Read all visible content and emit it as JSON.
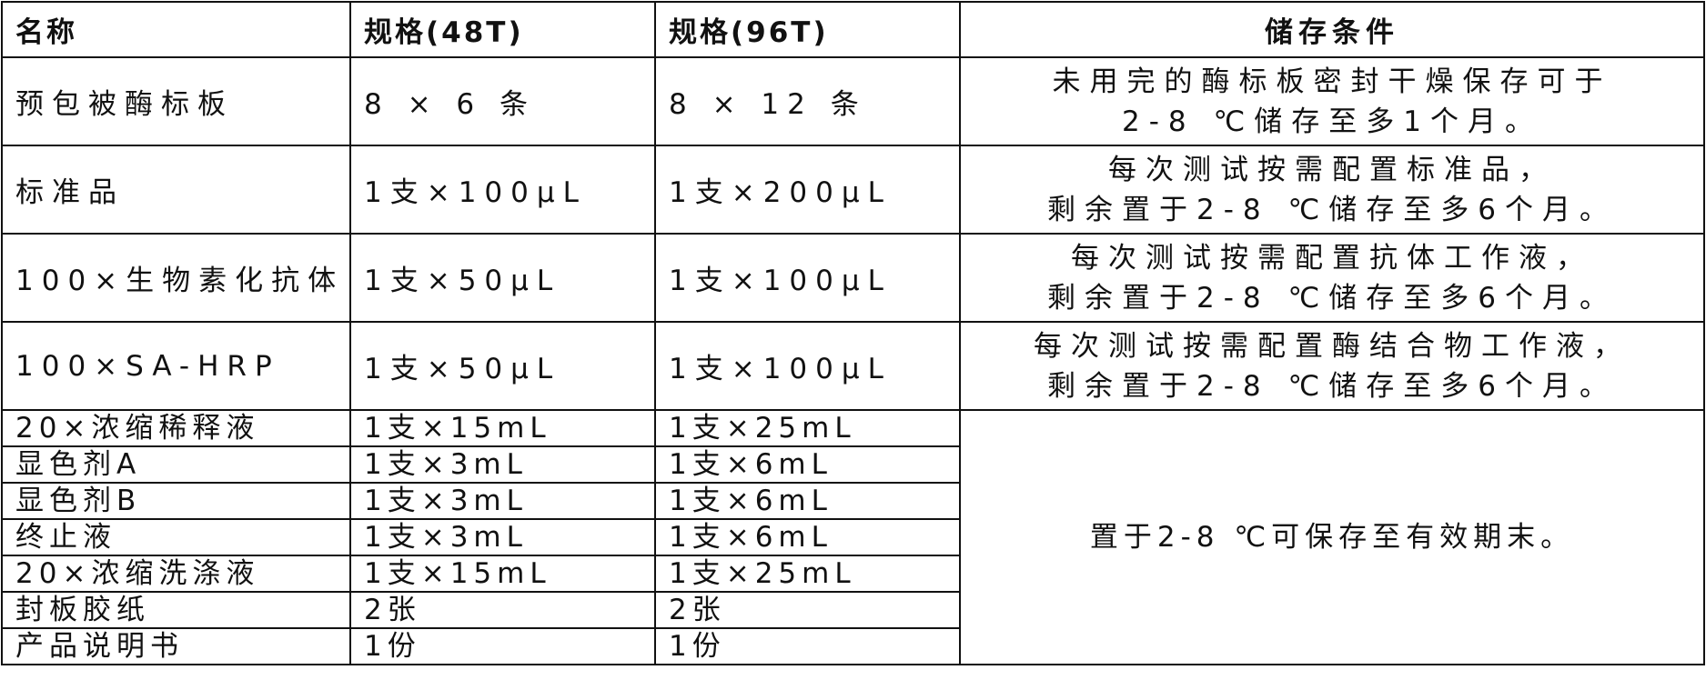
{
  "headers": [
    "名称",
    "规格(48T)",
    "规格(96T)",
    "储存条件"
  ],
  "big_rows": [
    {
      "name": "预包被酶标板",
      "spec48": "8 × 6 条",
      "spec96": "8 × 12 条",
      "storage": [
        "未用完的酶标板密封干燥保存可于",
        "2-8 ℃储存至多1个月。"
      ]
    },
    {
      "name": "标准品",
      "spec48": "1支×100µL",
      "spec96": "1支×200µL",
      "storage": [
        "每次测试按需配置标准品，",
        "剩余置于2-8 ℃储存至多6个月。"
      ]
    },
    {
      "name": "100×生物素化抗体",
      "spec48": "1支×50µL",
      "spec96": "1支×100µL",
      "storage": [
        "每次测试按需配置抗体工作液，",
        "剩余置于2-8 ℃储存至多6个月。"
      ]
    },
    {
      "name": "100×SA-HRP",
      "spec48": "1支×50µL",
      "spec96": "1支×100µL",
      "storage": [
        "每次测试按需配置酶结合物工作液，",
        "剩余置于2-8 ℃储存至多6个月。"
      ]
    }
  ],
  "small_rows": [
    {
      "name": "20×浓缩稀释液",
      "spec48": "1支×15mL",
      "spec96": "1支×25mL"
    },
    {
      "name": "显色剂A",
      "spec48": "1支×3mL",
      "spec96": "1支×6mL"
    },
    {
      "name": "显色剂B",
      "spec48": "1支×3mL",
      "spec96": "1支×6mL"
    },
    {
      "name": "终止液",
      "spec48": "1支×3mL",
      "spec96": "1支×6mL"
    },
    {
      "name": "20×浓缩洗涤液",
      "spec48": "1支×15mL",
      "spec96": "1支×25mL"
    },
    {
      "name": "封板胶纸",
      "spec48": "2张",
      "spec96": "2张"
    },
    {
      "name": "产品说明书",
      "spec48": "1份",
      "spec96": "1份"
    }
  ],
  "shared_storage": "置于2-8 ℃可保存至有效期末。"
}
